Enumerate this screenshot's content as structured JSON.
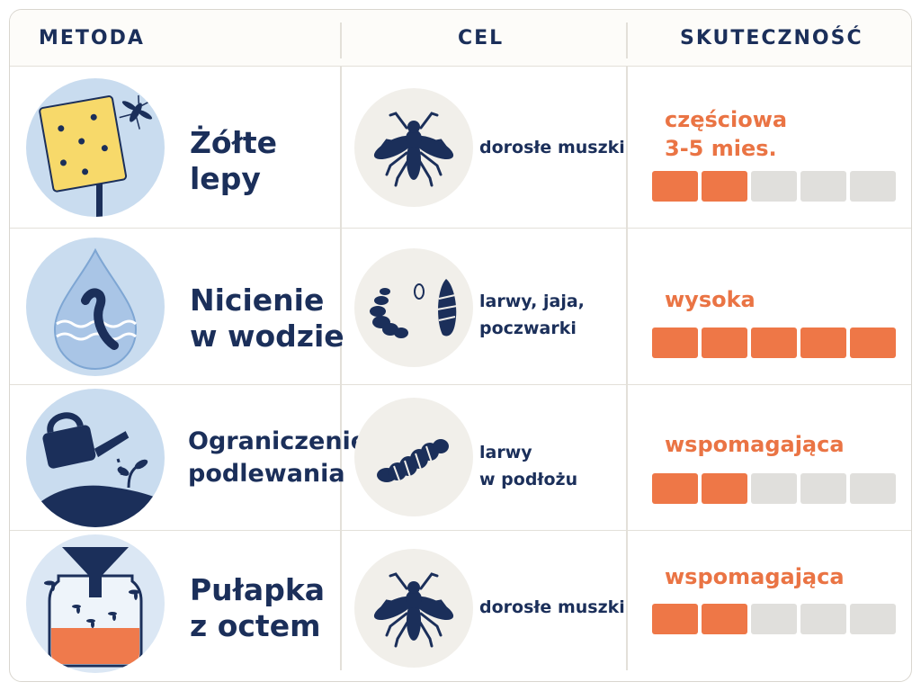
{
  "header": {
    "method": "METODA",
    "target": "CEL",
    "effectiveness": "SKUTECZNOŚĆ"
  },
  "rows": [
    {
      "method_lines": [
        "Żółte",
        "lepy"
      ],
      "method_icon": "yellow-sticky-trap-icon",
      "target_icon": "adult-fly-icon",
      "target_lines": [
        "dorosłe muszki"
      ],
      "effect_lines": [
        "częściowa",
        "3-5 mies."
      ],
      "level": 2,
      "max_level": 5
    },
    {
      "method_lines": [
        "Nicienie",
        "w wodzie"
      ],
      "method_icon": "nematode-water-drop-icon",
      "target_icon": "larvae-eggs-pupae-icon",
      "target_lines": [
        "larwy, jaja,",
        "poczwarki"
      ],
      "effect_lines": [
        "wysoka"
      ],
      "level": 5,
      "max_level": 5
    },
    {
      "method_lines": [
        "Ograniczenie",
        "podlewania"
      ],
      "method_icon": "watering-can-icon",
      "target_icon": "larva-icon",
      "target_lines": [
        "larwy",
        "w podłożu"
      ],
      "effect_lines": [
        "wspomagająca"
      ],
      "level": 2,
      "max_level": 5
    },
    {
      "method_lines": [
        "Pułapka",
        "z octem"
      ],
      "method_icon": "vinegar-jar-trap-icon",
      "target_icon": "adult-fly-icon",
      "target_lines": [
        "dorosłe muszki"
      ],
      "effect_lines": [
        "wspomagająca"
      ],
      "level": 2,
      "max_level": 5
    }
  ],
  "colors": {
    "navy": "#1b2f5a",
    "orange": "#ee7747",
    "bar_off": "#e0dfdc",
    "yellow": "#f7d96a",
    "light_blue": "#c9dcef"
  }
}
